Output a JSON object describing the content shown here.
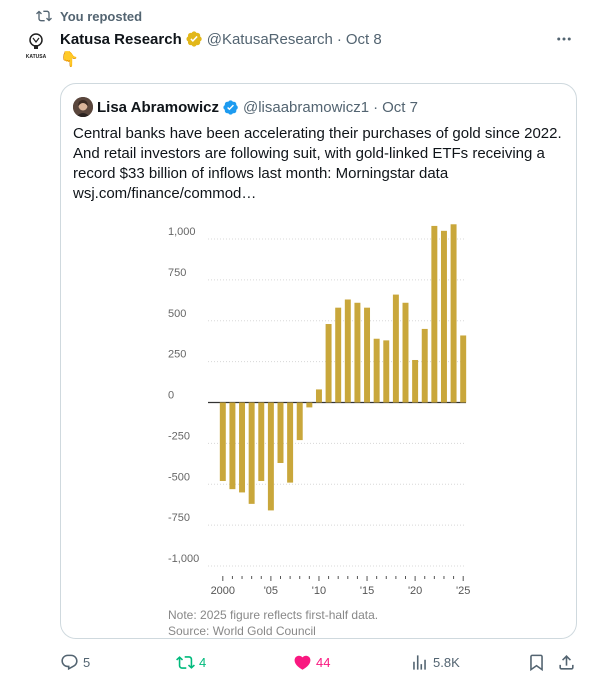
{
  "repost": {
    "label": "You reposted"
  },
  "tweet": {
    "author_name": "Katusa Research",
    "handle": "@KatusaResearch",
    "date": "Oct 8",
    "logo_text": "KATUSA",
    "body": "👇"
  },
  "quote": {
    "author_name": "Lisa Abramowicz",
    "handle": "@lisaabramowicz1",
    "date": "Oct 7",
    "text": "Central banks have been accelerating their purchases of gold since 2022. And retail investors are following suit, with gold-linked ETFs receiving a record $33 billion of inflows last month: Morningstar data wsj.com/finance/commod…"
  },
  "chart_data": {
    "type": "bar",
    "title": "",
    "xlabel": "",
    "ylabel": "",
    "x": [
      2000,
      2001,
      2002,
      2003,
      2004,
      2005,
      2006,
      2007,
      2008,
      2009,
      2010,
      2011,
      2012,
      2013,
      2014,
      2015,
      2016,
      2017,
      2018,
      2019,
      2020,
      2021,
      2022,
      2023,
      2024,
      2025
    ],
    "values": [
      -480,
      -530,
      -550,
      -620,
      -480,
      -660,
      -370,
      -490,
      -230,
      -30,
      80,
      480,
      580,
      630,
      610,
      580,
      390,
      380,
      660,
      610,
      260,
      450,
      1080,
      1050,
      1090,
      410
    ],
    "ylim": [
      -1000,
      1000
    ],
    "yticks": [
      "1,000",
      "750",
      "500",
      "250",
      "0",
      "-250",
      "-500",
      "-750",
      "-1,000"
    ],
    "ytick_values": [
      1000,
      750,
      500,
      250,
      0,
      -250,
      -500,
      -750,
      -1000
    ],
    "xticks": [
      "2000",
      "'05",
      "'10",
      "'15",
      "'20",
      "'25"
    ],
    "xtick_years": [
      2000,
      2005,
      2010,
      2015,
      2020,
      2025
    ],
    "bar_color": "#c9a73b",
    "grid": true,
    "note": "Note: 2025 figure reflects first-half data.",
    "source": "Source: World Gold Council"
  },
  "actions": {
    "replies": "5",
    "reposts": "4",
    "likes": "44",
    "views": "5.8K"
  },
  "colors": {
    "repost_active": "#00ba7c",
    "like_active": "#f91880",
    "verified": "#1d9bf0",
    "gold_badge": "#e2b719"
  }
}
